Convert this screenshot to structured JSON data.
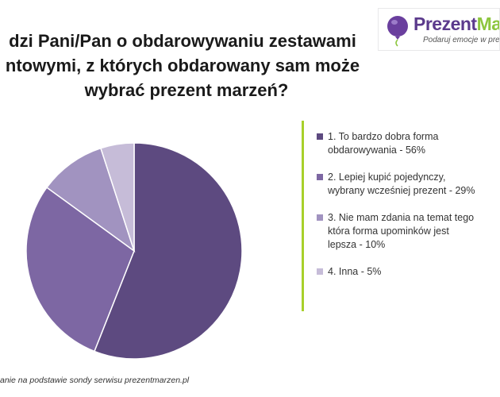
{
  "header": {
    "title_lines": [
      "dzi Pani/Pan o obdarowywaniu zestawami",
      "ntowymi, z których obdarowany sam może",
      "wybrać prezent marzeń?"
    ]
  },
  "logo": {
    "name_main": "Prezent",
    "name_cut": "Mar",
    "tagline": "Podaruj emocje w prez"
  },
  "chart_data": {
    "type": "pie",
    "title": "",
    "legend_position": "right",
    "categories": [
      "1. To bardzo dobra forma obdarowywania - 56%",
      "2. Lepiej kupić pojedynczy, wybrany wcześniej prezent - 29%",
      "3. Nie mam zdania na temat tego która forma upominków jest lepsza - 10%",
      "4. Inna - 5%"
    ],
    "values": [
      56,
      29,
      10,
      5
    ],
    "colors": [
      "#5d4a80",
      "#7d67a3",
      "#a193c0",
      "#c6bcd8"
    ]
  },
  "legend": {
    "items": [
      {
        "lines": [
          "1. To bardzo dobra forma",
          "obdarowywania - 56%"
        ]
      },
      {
        "lines": [
          "2. Lepiej kupić pojedynczy,",
          "wybrany wcześniej prezent - 29%"
        ]
      },
      {
        "lines": [
          "3. Nie mam zdania na temat tego",
          "która forma upominków jest",
          "lepsza - 10%"
        ]
      },
      {
        "lines": [
          "4. Inna - 5%"
        ]
      }
    ]
  },
  "footer": {
    "source": "anie na podstawie sondy serwisu prezentmarzen.pl"
  }
}
